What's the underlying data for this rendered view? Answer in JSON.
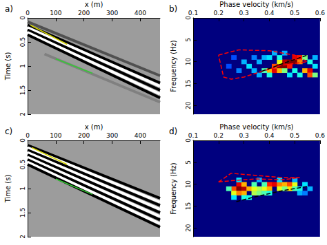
{
  "chart_data": [
    {
      "type": "line",
      "title": "a)",
      "xlabel": "x (m)",
      "ylabel": "Time (s)",
      "xlim": [
        0,
        470
      ],
      "xticks": [
        0,
        100,
        200,
        300,
        400
      ],
      "ylim": [
        0,
        2
      ],
      "yticks": [
        0,
        0.5,
        1,
        1.5,
        2
      ],
      "series": [
        {
          "type": "band",
          "color": "#505050",
          "x": [
            0,
            470
          ],
          "values": [
            0.08,
            1.2
          ]
        },
        {
          "type": "band",
          "color": "#000000",
          "x": [
            0,
            470
          ],
          "values": [
            0.15,
            1.35
          ]
        },
        {
          "type": "band",
          "color": "#ffffff",
          "x": [
            0,
            470
          ],
          "values": [
            0.2,
            1.42
          ]
        },
        {
          "type": "band",
          "color": "#000000",
          "x": [
            0,
            470
          ],
          "values": [
            0.25,
            1.5
          ]
        },
        {
          "type": "band",
          "color": "#ffffff",
          "x": [
            0,
            470
          ],
          "values": [
            0.3,
            1.58
          ]
        },
        {
          "type": "band",
          "color": "#000000",
          "x": [
            0,
            470
          ],
          "values": [
            0.35,
            1.66
          ]
        },
        {
          "type": "band",
          "color": "#808080",
          "x": [
            60,
            470
          ],
          "values": [
            0.75,
            1.75
          ]
        },
        {
          "type": "line",
          "color": "#d4d400",
          "x": [
            10,
            140
          ],
          "values": [
            0.15,
            0.55
          ]
        },
        {
          "type": "line",
          "color": "#33cc33",
          "x": [
            100,
            230
          ],
          "values": [
            0.85,
            1.15
          ]
        }
      ]
    },
    {
      "type": "heatmap",
      "title": "b)",
      "xlabel": "Phase velocity (km/s)",
      "ylabel": "Frequency (Hz)",
      "xlim": [
        0.1,
        0.6
      ],
      "xticks": [
        0.1,
        0.2,
        0.3,
        0.4,
        0.5,
        0.6
      ],
      "ylim": [
        0,
        22
      ],
      "yticks": [
        0,
        5,
        10,
        15,
        20
      ],
      "zlim": [
        0,
        1
      ],
      "cells": [
        [
          0.4,
          12,
          0.7
        ],
        [
          0.42,
          12,
          0.9
        ],
        [
          0.42,
          11,
          0.8
        ],
        [
          0.44,
          11,
          1.0
        ],
        [
          0.44,
          12,
          0.7
        ],
        [
          0.46,
          11,
          1.0
        ],
        [
          0.46,
          10,
          0.95
        ],
        [
          0.48,
          10,
          1.0
        ],
        [
          0.48,
          11,
          0.85
        ],
        [
          0.5,
          10,
          1.0
        ],
        [
          0.5,
          9,
          0.9
        ],
        [
          0.52,
          9,
          0.85
        ],
        [
          0.52,
          10,
          0.75
        ],
        [
          0.54,
          9,
          0.5
        ],
        [
          0.38,
          12,
          0.45
        ],
        [
          0.4,
          13,
          0.4
        ],
        [
          0.44,
          10,
          0.6
        ],
        [
          0.46,
          12,
          0.5
        ],
        [
          0.54,
          12,
          0.7
        ],
        [
          0.56,
          12,
          0.9
        ],
        [
          0.56,
          13,
          0.8
        ],
        [
          0.58,
          13,
          0.5
        ],
        [
          0.52,
          13,
          0.4
        ],
        [
          0.3,
          10,
          0.3
        ],
        [
          0.32,
          11,
          0.35
        ],
        [
          0.34,
          12,
          0.3
        ],
        [
          0.36,
          10,
          0.3
        ],
        [
          0.28,
          12,
          0.25
        ],
        [
          0.38,
          9,
          0.3
        ],
        [
          0.4,
          9,
          0.35
        ],
        [
          0.42,
          8,
          0.3
        ],
        [
          0.24,
          11,
          0.2
        ],
        [
          0.26,
          9,
          0.2
        ],
        [
          0.36,
          13,
          0.3
        ],
        [
          0.34,
          9,
          0.25
        ],
        [
          0.5,
          12,
          0.4
        ],
        [
          0.48,
          13,
          0.35
        ],
        [
          0.44,
          9,
          0.4
        ],
        [
          0.46,
          8,
          0.3
        ],
        [
          0.56,
          10,
          0.4
        ],
        [
          0.58,
          11,
          0.35
        ],
        [
          0.58,
          9,
          0.3
        ]
      ],
      "series": [
        {
          "type": "line",
          "color": "#ff0000",
          "line_style": "dashed",
          "x": [
            0.2,
            0.28,
            0.4,
            0.5,
            0.55,
            0.45,
            0.3,
            0.25,
            0.22,
            0.2
          ],
          "values": [
            8.5,
            7.3,
            7.5,
            8.5,
            10,
            10.8,
            13.5,
            14,
            13.5,
            8.5
          ]
        },
        {
          "type": "line",
          "color": "#000000",
          "line_style": "dashed",
          "x": [
            0.37,
            0.45,
            0.55
          ],
          "values": [
            12.2,
            10.5,
            8.5
          ]
        }
      ]
    },
    {
      "type": "line",
      "title": "c)",
      "xlabel": "x (m)",
      "ylabel": "Time (s)",
      "xlim": [
        0,
        470
      ],
      "xticks": [
        0,
        100,
        200,
        300,
        400
      ],
      "ylim": [
        0,
        2
      ],
      "yticks": [
        0,
        0.5,
        1,
        1.5,
        2
      ],
      "series": [
        {
          "type": "band",
          "color": "#000000",
          "x": [
            0,
            470
          ],
          "values": [
            0.1,
            1.2
          ]
        },
        {
          "type": "band",
          "color": "#ffffff",
          "x": [
            0,
            470
          ],
          "values": [
            0.15,
            1.28
          ]
        },
        {
          "type": "band",
          "color": "#000000",
          "x": [
            0,
            470
          ],
          "values": [
            0.2,
            1.35
          ]
        },
        {
          "type": "band",
          "color": "#ffffff",
          "x": [
            0,
            470
          ],
          "values": [
            0.25,
            1.43
          ]
        },
        {
          "type": "band",
          "color": "#000000",
          "x": [
            0,
            470
          ],
          "values": [
            0.3,
            1.5
          ]
        },
        {
          "type": "band",
          "color": "#ffffff",
          "x": [
            0,
            470
          ],
          "values": [
            0.35,
            1.58
          ]
        },
        {
          "type": "band",
          "color": "#000000",
          "x": [
            0,
            470
          ],
          "values": [
            0.4,
            1.65
          ]
        },
        {
          "type": "band",
          "color": "#ffffff",
          "x": [
            0,
            470
          ],
          "values": [
            0.45,
            1.73
          ]
        },
        {
          "type": "band",
          "color": "#000000",
          "x": [
            0,
            470
          ],
          "values": [
            0.5,
            1.8
          ]
        },
        {
          "type": "line",
          "color": "#d4d400",
          "x": [
            15,
            140
          ],
          "values": [
            0.15,
            0.5
          ]
        },
        {
          "type": "line",
          "color": "#33cc33",
          "x": [
            100,
            230
          ],
          "values": [
            0.8,
            1.12
          ]
        }
      ]
    },
    {
      "type": "heatmap",
      "title": "d)",
      "xlabel": "Phase velocity (km/s)",
      "ylabel": "Frequency (Hz)",
      "xlim": [
        0.1,
        0.6
      ],
      "xticks": [
        0.1,
        0.2,
        0.3,
        0.4,
        0.5,
        0.6
      ],
      "ylim": [
        0,
        22
      ],
      "yticks": [
        0,
        5,
        10,
        15,
        20
      ],
      "zlim": [
        0,
        1
      ],
      "cells": [
        [
          0.26,
          11,
          0.8
        ],
        [
          0.28,
          10,
          0.9
        ],
        [
          0.28,
          11,
          1.0
        ],
        [
          0.3,
          11,
          0.95
        ],
        [
          0.3,
          12,
          0.7
        ],
        [
          0.26,
          12,
          0.6
        ],
        [
          0.32,
          11,
          0.7
        ],
        [
          0.28,
          12,
          0.75
        ],
        [
          0.24,
          11,
          0.45
        ],
        [
          0.3,
          10,
          0.7
        ],
        [
          0.38,
          11,
          0.6
        ],
        [
          0.4,
          10,
          0.85
        ],
        [
          0.42,
          10,
          0.9
        ],
        [
          0.4,
          11,
          0.7
        ],
        [
          0.44,
          10,
          0.75
        ],
        [
          0.44,
          11,
          0.6
        ],
        [
          0.46,
          10,
          0.7
        ],
        [
          0.48,
          10,
          0.8
        ],
        [
          0.48,
          11,
          0.65
        ],
        [
          0.5,
          10,
          0.6
        ],
        [
          0.34,
          12,
          0.55
        ],
        [
          0.36,
          12,
          0.5
        ],
        [
          0.38,
          12,
          0.45
        ],
        [
          0.4,
          12,
          0.4
        ],
        [
          0.32,
          13,
          0.4
        ],
        [
          0.36,
          11,
          0.55
        ],
        [
          0.34,
          11,
          0.6
        ],
        [
          0.46,
          11,
          0.5
        ],
        [
          0.5,
          11,
          0.45
        ],
        [
          0.52,
          11,
          0.4
        ],
        [
          0.54,
          10,
          0.35
        ],
        [
          0.56,
          11,
          0.3
        ],
        [
          0.52,
          12,
          0.3
        ],
        [
          0.26,
          13,
          0.35
        ],
        [
          0.3,
          13,
          0.4
        ],
        [
          0.28,
          9,
          0.35
        ],
        [
          0.34,
          10,
          0.45
        ],
        [
          0.38,
          10,
          0.45
        ],
        [
          0.36,
          9,
          0.3
        ],
        [
          0.44,
          9,
          0.35
        ],
        [
          0.5,
          9,
          0.3
        ],
        [
          0.54,
          12,
          0.25
        ]
      ],
      "series": [
        {
          "type": "line",
          "color": "#ff0000",
          "line_style": "dashed",
          "x": [
            0.2,
            0.25,
            0.35,
            0.45,
            0.52,
            0.45,
            0.35,
            0.25,
            0.2
          ],
          "values": [
            9.5,
            7.5,
            8,
            8.5,
            8.5,
            9,
            8.8,
            9.2,
            9.5
          ]
        },
        {
          "type": "line",
          "color": "#000000",
          "line_style": "dashed",
          "x": [
            0.27,
            0.35,
            0.45,
            0.55
          ],
          "values": [
            14,
            12.8,
            11.5,
            10.5
          ]
        }
      ]
    }
  ]
}
